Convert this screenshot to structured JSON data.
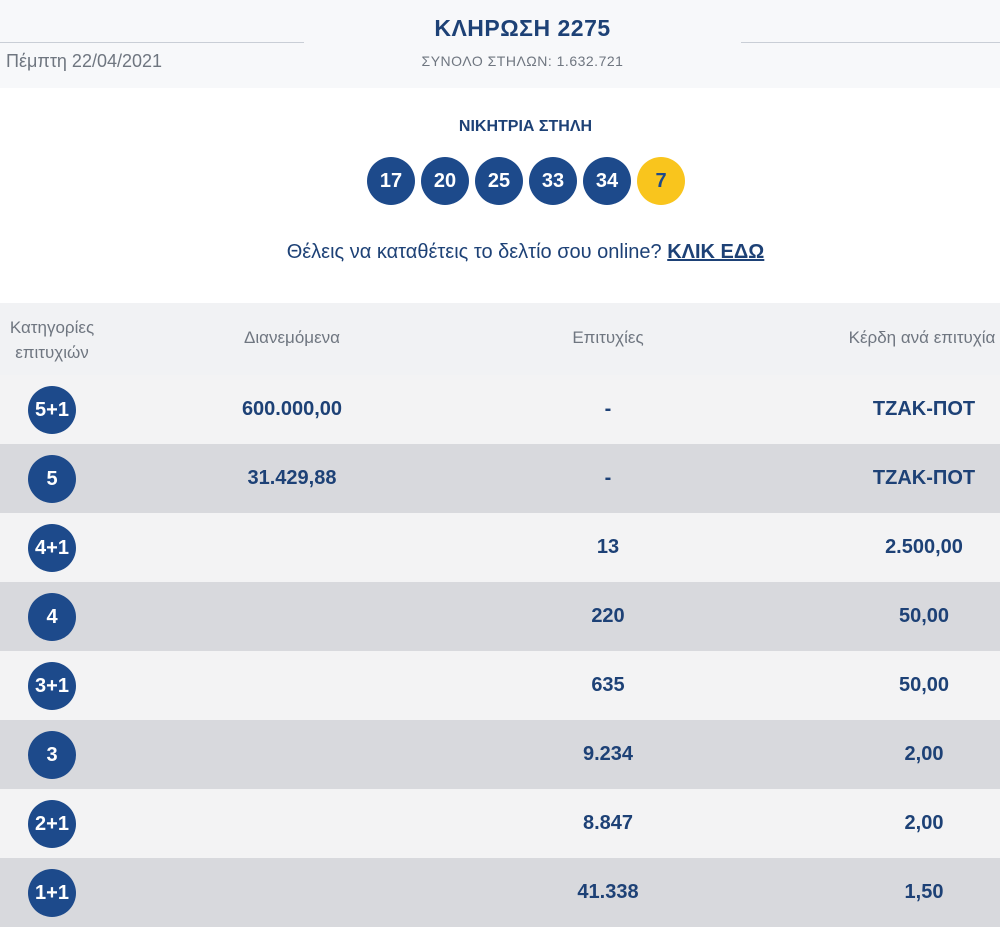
{
  "header": {
    "date": "Πέμπτη 22/04/2021",
    "title": "ΚΛΗΡΩΣΗ 2275",
    "subtitle": "ΣΥΝΟΛΟ ΣΤΗΛΩΝ: 1.632.721"
  },
  "winning": {
    "label": "ΝΙΚΗΤΡΙΑ ΣΤΗΛΗ",
    "numbers": [
      "17",
      "20",
      "25",
      "33",
      "34"
    ],
    "bonus": "7"
  },
  "cta": {
    "text": "Θέλεις να καταθέτεις το δελτίο σου online? ",
    "link": "ΚΛΙΚ ΕΔΩ"
  },
  "table": {
    "headers": [
      "Κατηγορίες επιτυχιών",
      "Διανεμόμενα",
      "Επιτυχίες",
      "Κέρδη ανά επιτυχία"
    ],
    "rows": [
      {
        "category": "5+1",
        "distributed": "600.000,00",
        "wins": "-",
        "prize": "ΤΖΑΚ-ΠΟΤ"
      },
      {
        "category": "5",
        "distributed": "31.429,88",
        "wins": "-",
        "prize": "ΤΖΑΚ-ΠΟΤ"
      },
      {
        "category": "4+1",
        "distributed": "",
        "wins": "13",
        "prize": "2.500,00"
      },
      {
        "category": "4",
        "distributed": "",
        "wins": "220",
        "prize": "50,00"
      },
      {
        "category": "3+1",
        "distributed": "",
        "wins": "635",
        "prize": "50,00"
      },
      {
        "category": "3",
        "distributed": "",
        "wins": "9.234",
        "prize": "2,00"
      },
      {
        "category": "2+1",
        "distributed": "",
        "wins": "8.847",
        "prize": "2,00"
      },
      {
        "category": "1+1",
        "distributed": "",
        "wins": "41.338",
        "prize": "1,50"
      }
    ]
  },
  "colors": {
    "primary": "#1d4176",
    "ball": "#1d4a8b",
    "bonus_ball": "#f9c51d",
    "row_light": "#f3f3f4",
    "row_dark": "#d8d9dd"
  }
}
